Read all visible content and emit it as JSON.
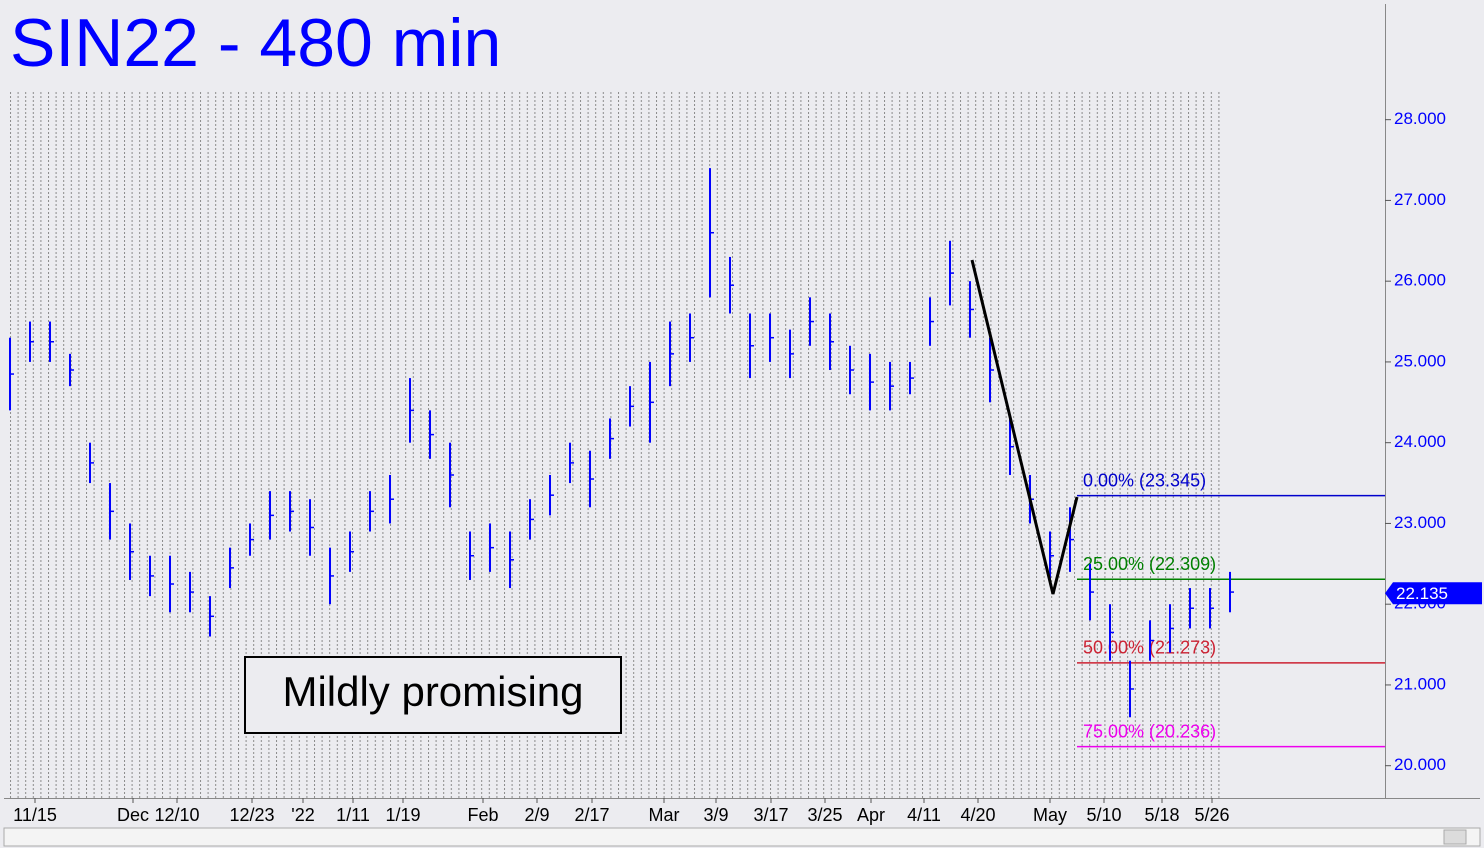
{
  "chart_data": {
    "type": "ohlc",
    "title": "SIN22 - 480 min",
    "annotation": "Mildly promising",
    "color": "#0000ff",
    "high": [
      25.3,
      25.5,
      25.5,
      25.1,
      24.0,
      23.5,
      23.0,
      22.6,
      22.6,
      22.4,
      22.1,
      22.7,
      23.0,
      23.4,
      23.4,
      23.3,
      22.7,
      22.9,
      23.4,
      23.6,
      24.8,
      24.4,
      24.0,
      22.9,
      23.0,
      22.9,
      23.3,
      23.6,
      24.0,
      23.9,
      24.3,
      24.7,
      25.0,
      25.5,
      25.6,
      27.4,
      26.3,
      25.6,
      25.6,
      25.4,
      25.8,
      25.6,
      25.2,
      25.1,
      25.0,
      25.0,
      25.8,
      26.5,
      26.0,
      25.3,
      24.3,
      23.6,
      22.9,
      23.2,
      22.5,
      22.0,
      21.3,
      21.8,
      22.0,
      22.2,
      22.2,
      22.4
    ],
    "low": [
      24.4,
      25.0,
      25.0,
      24.7,
      23.5,
      22.8,
      22.3,
      22.1,
      21.9,
      21.9,
      21.6,
      22.2,
      22.6,
      22.8,
      22.9,
      22.6,
      22.0,
      22.4,
      22.9,
      23.0,
      24.0,
      23.8,
      23.2,
      22.3,
      22.4,
      22.2,
      22.8,
      23.1,
      23.5,
      23.2,
      23.8,
      24.2,
      24.0,
      24.7,
      25.0,
      25.8,
      25.6,
      24.8,
      25.0,
      24.8,
      25.2,
      24.9,
      24.6,
      24.4,
      24.4,
      24.6,
      25.2,
      25.7,
      25.3,
      24.5,
      23.6,
      23.0,
      22.3,
      22.4,
      21.8,
      21.3,
      20.6,
      21.3,
      21.4,
      21.7,
      21.7,
      21.9
    ],
    "last": 22.135,
    "levels": [
      {
        "label": "0.00% (23.345)",
        "value": 23.345,
        "color": "#0000cc"
      },
      {
        "label": "25.00% (22.309)",
        "value": 22.309,
        "color": "#008000"
      },
      {
        "label": "50.00% (21.273)",
        "value": 21.273,
        "color": "#cc2233"
      },
      {
        "label": "75.00% (20.236)",
        "value": 20.236,
        "color": "#ee00ee"
      }
    ],
    "xlim": [
      -0.1,
      68.75
    ],
    "xticks": [
      {
        "value": 1.25,
        "label": "11/15"
      },
      {
        "value": 6.15,
        "label": "Dec"
      },
      {
        "value": 8.35,
        "label": "12/10"
      },
      {
        "value": 12.1,
        "label": "12/23"
      },
      {
        "value": 14.65,
        "label": "'22"
      },
      {
        "value": 17.15,
        "label": "1/11"
      },
      {
        "value": 19.65,
        "label": "1/19"
      },
      {
        "value": 23.65,
        "label": "Feb"
      },
      {
        "value": 26.35,
        "label": "2/9"
      },
      {
        "value": 29.1,
        "label": "2/17"
      },
      {
        "value": 32.7,
        "label": "Mar"
      },
      {
        "value": 35.3,
        "label": "3/9"
      },
      {
        "value": 38.05,
        "label": "3/17"
      },
      {
        "value": 40.75,
        "label": "3/25"
      },
      {
        "value": 43.05,
        "label": "Apr"
      },
      {
        "value": 45.7,
        "label": "4/11"
      },
      {
        "value": 48.4,
        "label": "4/20"
      },
      {
        "value": 52.0,
        "label": "May"
      },
      {
        "value": 54.7,
        "label": "5/10"
      },
      {
        "value": 57.6,
        "label": "5/18"
      },
      {
        "value": 60.1,
        "label": "5/26"
      }
    ],
    "ylim": [
      19.6,
      29.42
    ],
    "yticks": [
      {
        "value": 20,
        "label": "20.000"
      },
      {
        "value": 21,
        "label": "21.000"
      },
      {
        "value": 22,
        "label": "22.000"
      },
      {
        "value": 23,
        "label": "23.000"
      },
      {
        "value": 24,
        "label": "24.000"
      },
      {
        "value": 25,
        "label": "25.000"
      },
      {
        "value": 26,
        "label": "26.000"
      },
      {
        "value": 27,
        "label": "27.000"
      },
      {
        "value": 28,
        "label": "28.000"
      }
    ]
  }
}
